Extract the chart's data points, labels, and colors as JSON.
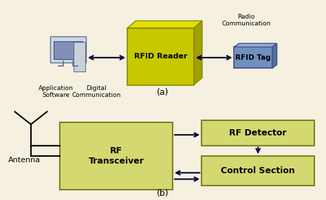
{
  "bg_color": "#f5f0e0",
  "top_bg": "#f5f0e0",
  "bot_bg": "#f5f0e0",
  "rfid_reader_color": "#c8c800",
  "rfid_tag_color": "#7090c0",
  "rf_transceiver_color": "#d4d870",
  "rf_detector_color": "#d4d870",
  "control_section_color": "#d4d870",
  "text_color": "#000000",
  "arrow_color": "#000033",
  "label_a": "(a)",
  "label_b": "(b)",
  "rfid_reader_text": "RFID Reader",
  "rfid_tag_text": "RFID Tag",
  "rf_transceiver_text": "RF\nTransceiver",
  "rf_detector_text": "RF Detector",
  "control_section_text": "Control Section",
  "app_software_text": "Application\nSoftware",
  "digital_comm_text": "Digital\nCommunication",
  "radio_comm_text": "Radio\nCommunication",
  "antenna_text": "Antenna"
}
